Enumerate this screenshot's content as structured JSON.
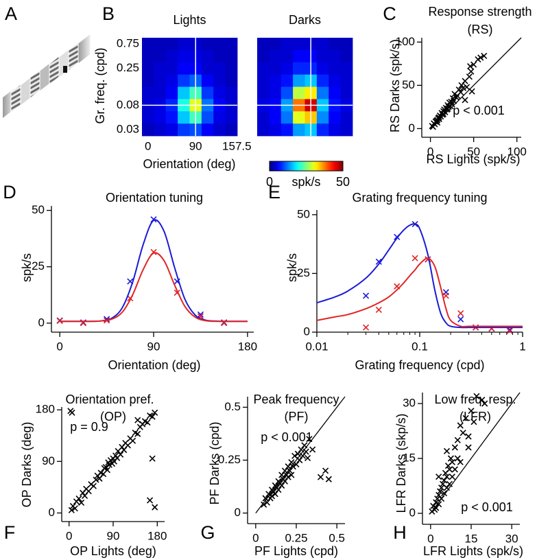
{
  "stimulus": {
    "panel": "A"
  },
  "chart_data": [
    {
      "type": "heatmap",
      "panel": "B",
      "x": [
        0,
        22.5,
        45,
        67.5,
        90,
        112.5,
        135,
        157.5
      ],
      "y": [
        0.75,
        0.5,
        0.25,
        0.18,
        0.12,
        0.08,
        0.045,
        0.03
      ],
      "xticks": [
        0,
        90,
        157.5
      ],
      "yticks": [
        0.75,
        0.25,
        0.08,
        0.03
      ],
      "xlabel": "Orientation (deg)",
      "ylabel": "Gr. freq. (cpd)",
      "clim": [
        0,
        50
      ],
      "colorbar_ticks": [
        0,
        50
      ],
      "colorbar_label": "spk/s",
      "crosshair": {
        "x": 90,
        "y": 0.08
      },
      "maps": [
        {
          "title": "Lights",
          "values": [
            [
              3,
              3,
              3,
              4,
              4,
              3,
              3,
              3
            ],
            [
              3,
              3,
              4,
              5,
              5,
              4,
              3,
              3
            ],
            [
              3,
              4,
              4,
              6,
              6,
              4,
              4,
              3
            ],
            [
              3,
              4,
              5,
              9,
              11,
              6,
              4,
              3
            ],
            [
              4,
              4,
              6,
              16,
              22,
              9,
              5,
              4
            ],
            [
              4,
              5,
              8,
              20,
              30,
              12,
              6,
              4
            ],
            [
              4,
              5,
              7,
              16,
              22,
              10,
              5,
              4
            ],
            [
              3,
              4,
              5,
              9,
              10,
              6,
              4,
              3
            ]
          ]
        },
        {
          "title": "Darks",
          "values": [
            [
              3,
              3,
              4,
              4,
              4,
              4,
              3,
              3
            ],
            [
              3,
              4,
              4,
              6,
              6,
              4,
              4,
              3
            ],
            [
              4,
              4,
              5,
              8,
              8,
              5,
              4,
              4
            ],
            [
              4,
              5,
              7,
              14,
              16,
              8,
              5,
              4
            ],
            [
              4,
              5,
              10,
              28,
              32,
              12,
              6,
              4
            ],
            [
              5,
              6,
              14,
              38,
              46,
              16,
              7,
              5
            ],
            [
              4,
              6,
              12,
              30,
              34,
              13,
              6,
              4
            ],
            [
              4,
              5,
              7,
              14,
              16,
              8,
              5,
              4
            ]
          ]
        }
      ]
    },
    {
      "type": "scatter",
      "panel": "C",
      "title": "Response strength",
      "subtitle": "(RS)",
      "xlabel": "RS Lights (spk/s)",
      "ylabel": "RS Darks (spk/s)",
      "annotation": "p < 0.001",
      "xlim": [
        -10,
        105
      ],
      "ylim": [
        -10,
        105
      ],
      "xticks": [
        0,
        50,
        100
      ],
      "yticks": [
        0,
        50,
        100
      ],
      "color": "#000000",
      "diagonal": true,
      "x": [
        2,
        3,
        4,
        5,
        6,
        7,
        8,
        8,
        9,
        10,
        10,
        11,
        12,
        13,
        14,
        15,
        15,
        16,
        17,
        18,
        19,
        20,
        20,
        21,
        22,
        23,
        24,
        25,
        26,
        27,
        28,
        30,
        31,
        33,
        35,
        36,
        38,
        40,
        42,
        45,
        47,
        46,
        50,
        55,
        62,
        58,
        48,
        40
      ],
      "values": [
        3,
        2,
        6,
        5,
        8,
        9,
        10,
        7,
        12,
        13,
        11,
        15,
        14,
        18,
        16,
        20,
        17,
        22,
        19,
        24,
        22,
        27,
        23,
        25,
        30,
        26,
        31,
        28,
        35,
        32,
        40,
        36,
        38,
        45,
        42,
        50,
        47,
        55,
        48,
        60,
        66,
        72,
        74,
        80,
        84,
        82,
        43,
        33
      ]
    },
    {
      "type": "line",
      "panel": "D",
      "title": "Orientation tuning",
      "xlabel": "Orientation (deg)",
      "ylabel": "spk/s",
      "xscale": "linear",
      "xlim": [
        -8,
        186
      ],
      "ylim": [
        -4,
        52
      ],
      "xticks": [
        0,
        90,
        180
      ],
      "yticks": [
        0,
        25,
        50
      ],
      "series": [
        {
          "color": "#1a1ad6",
          "style": "markers",
          "x": [
            0,
            22.5,
            45,
            67.5,
            90,
            112.5,
            135,
            157.5
          ],
          "values": [
            1.2,
            0.3,
            1.8,
            18.5,
            46,
            18.5,
            3.8,
            0.3
          ]
        },
        {
          "color": "#e02424",
          "style": "markers",
          "x": [
            0,
            22.5,
            45,
            67.5,
            90,
            112.5,
            135,
            157.5
          ],
          "values": [
            1,
            0,
            1.2,
            11,
            31.5,
            13.5,
            3,
            0
          ]
        },
        {
          "color": "#1a1ad6",
          "style": "line",
          "x": [
            0,
            10,
            20,
            30,
            40,
            50,
            60,
            70,
            80,
            90,
            100,
            110,
            120,
            130,
            140,
            150,
            160,
            170,
            180
          ],
          "values": [
            0.8,
            0.8,
            0.8,
            0.8,
            1.0,
            2.2,
            6.9,
            18.4,
            34.9,
            45.6,
            40.7,
            24.8,
            10.6,
            3.5,
            1.3,
            0.9,
            0.8,
            0.8,
            0.8
          ]
        },
        {
          "color": "#e02424",
          "style": "line",
          "x": [
            0,
            10,
            20,
            30,
            40,
            50,
            60,
            70,
            80,
            90,
            100,
            110,
            120,
            130,
            140,
            150,
            160,
            170,
            180
          ],
          "values": [
            0.8,
            0.8,
            0.8,
            0.8,
            1.0,
            1.8,
            4.9,
            12.7,
            23.8,
            31.1,
            27.7,
            17.0,
            7.4,
            2.6,
            1.1,
            0.8,
            0.8,
            0.8,
            0.8
          ]
        }
      ]
    },
    {
      "type": "line",
      "panel": "E",
      "title": "Grating frequency tuning",
      "xlabel": "Grating frequency (cpd)",
      "ylabel": "spk/s",
      "xscale": "log",
      "xlim": [
        0.01,
        1
      ],
      "ylim": [
        0,
        52
      ],
      "xticks": [
        0.01,
        0.1,
        1
      ],
      "yticks": [
        0,
        25,
        50
      ],
      "xminorticks": [
        0.02,
        0.03,
        0.04,
        0.05,
        0.06,
        0.07,
        0.08,
        0.09,
        0.2,
        0.3,
        0.4,
        0.5,
        0.6,
        0.7,
        0.8,
        0.9
      ],
      "series": [
        {
          "color": "#1a1ad6",
          "style": "markers",
          "x": [
            0.03,
            0.04,
            0.06,
            0.09,
            0.12,
            0.18,
            0.25,
            0.35,
            0.5,
            0.75
          ],
          "values": [
            15.5,
            30,
            40.5,
            46,
            31,
            17,
            5.5,
            2,
            1.5,
            1
          ]
        },
        {
          "color": "#e02424",
          "style": "markers",
          "x": [
            0.03,
            0.04,
            0.06,
            0.09,
            0.12,
            0.18,
            0.25,
            0.35,
            0.5,
            0.75
          ],
          "values": [
            2,
            9.5,
            19.5,
            31.5,
            31,
            15.5,
            8,
            2,
            1.5,
            0.5
          ]
        },
        {
          "color": "#1a1ad6",
          "style": "line",
          "x": [
            0.01,
            0.015,
            0.02,
            0.03,
            0.04,
            0.05,
            0.06,
            0.07,
            0.08,
            0.09,
            0.1,
            0.12,
            0.14,
            0.16,
            0.18,
            0.2,
            0.25,
            0.3,
            0.4,
            0.5,
            0.7,
            1
          ],
          "values": [
            12.5,
            15,
            17.5,
            23,
            29,
            35,
            40,
            43.5,
            45.5,
            46,
            44,
            33,
            18,
            8,
            4,
            2.5,
            2,
            2,
            2,
            2,
            2,
            2
          ]
        },
        {
          "color": "#e02424",
          "style": "line",
          "x": [
            0.01,
            0.015,
            0.02,
            0.03,
            0.04,
            0.05,
            0.06,
            0.07,
            0.08,
            0.09,
            0.1,
            0.12,
            0.14,
            0.16,
            0.18,
            0.2,
            0.25,
            0.3,
            0.4,
            0.5,
            0.7,
            1
          ],
          "values": [
            5,
            6.5,
            7.5,
            10,
            12.5,
            15,
            18,
            21,
            24,
            26.5,
            29,
            31.5,
            28,
            19,
            10,
            5,
            2.5,
            2.5,
            2.5,
            2.5,
            2.5,
            2.5
          ]
        }
      ]
    },
    {
      "type": "scatter",
      "panel": "F",
      "title": "Orientation pref.",
      "subtitle": "(OP)",
      "xlabel": "OP Lights (deg)",
      "ylabel": "OP Darks (deg)",
      "annotation": "p = 0.9",
      "xlim": [
        -15,
        195
      ],
      "ylim": [
        -15,
        185
      ],
      "xticks": [
        0,
        90,
        180
      ],
      "yticks": [
        0,
        90,
        180
      ],
      "color": "#000000",
      "diagonal": false,
      "x": [
        5,
        8,
        12,
        15,
        20,
        25,
        28,
        32,
        35,
        40,
        45,
        50,
        55,
        58,
        62,
        65,
        70,
        72,
        75,
        78,
        80,
        82,
        85,
        88,
        90,
        92,
        95,
        98,
        100,
        105,
        108,
        112,
        115,
        120,
        125,
        130,
        135,
        140,
        145,
        150,
        155,
        160,
        165,
        170,
        175,
        3,
        6,
        165,
        175,
        170,
        140
      ],
      "values": [
        5,
        12,
        8,
        20,
        25,
        18,
        35,
        30,
        42,
        38,
        50,
        47,
        58,
        65,
        60,
        70,
        68,
        78,
        80,
        75,
        88,
        84,
        92,
        86,
        95,
        90,
        100,
        96,
        108,
        102,
        115,
        110,
        122,
        118,
        130,
        126,
        140,
        138,
        150,
        155,
        160,
        158,
        170,
        168,
        175,
        178,
        175,
        22,
        10,
        95,
        162
      ]
    },
    {
      "type": "scatter",
      "panel": "G",
      "title": "Peak frequency",
      "subtitle": "(PF)",
      "xlabel": "PF Lights (cpd)",
      "ylabel": "PF Darks (cpd)",
      "annotation": "p < 0.001",
      "xlim": [
        -0.05,
        0.55
      ],
      "ylim": [
        -0.05,
        0.55
      ],
      "xticks": [
        0,
        0.25,
        0.5
      ],
      "yticks": [
        0,
        0.25,
        0.5
      ],
      "color": "#000000",
      "diagonal": true,
      "x": [
        0.05,
        0.06,
        0.07,
        0.08,
        0.09,
        0.1,
        0.1,
        0.11,
        0.12,
        0.12,
        0.13,
        0.14,
        0.14,
        0.15,
        0.16,
        0.16,
        0.17,
        0.18,
        0.18,
        0.19,
        0.2,
        0.2,
        0.21,
        0.22,
        0.22,
        0.23,
        0.24,
        0.25,
        0.26,
        0.27,
        0.28,
        0.29,
        0.3,
        0.31,
        0.33,
        0.35,
        0.4,
        0.45,
        0.43,
        0.32
      ],
      "values": [
        0.04,
        0.07,
        0.05,
        0.09,
        0.07,
        0.11,
        0.08,
        0.1,
        0.13,
        0.09,
        0.12,
        0.15,
        0.11,
        0.14,
        0.18,
        0.13,
        0.16,
        0.2,
        0.15,
        0.18,
        0.22,
        0.17,
        0.2,
        0.24,
        0.18,
        0.22,
        0.27,
        0.23,
        0.28,
        0.25,
        0.3,
        0.27,
        0.32,
        0.29,
        0.35,
        0.3,
        0.17,
        0.16,
        0.2,
        0.26
      ]
    },
    {
      "type": "scatter",
      "panel": "H",
      "title": "Low freq. resp.",
      "subtitle": "(LFR)",
      "xlabel": "LFR Lights (spk/s)",
      "ylabel": "LFR Darks (skp/s)",
      "annotation": "p < 0.001",
      "xlim": [
        -3,
        33
      ],
      "ylim": [
        -3,
        33
      ],
      "xticks": [
        0,
        15,
        30
      ],
      "yticks": [
        0,
        15,
        30
      ],
      "color": "#000000",
      "diagonal": true,
      "x": [
        0.5,
        1,
        1.5,
        2,
        2,
        2.5,
        3,
        3,
        3.5,
        4,
        4,
        4.5,
        5,
        5,
        5.5,
        6,
        6,
        6.5,
        7,
        7,
        7.5,
        8,
        8,
        9,
        9,
        10,
        10,
        11,
        11,
        12,
        13,
        14,
        15,
        16,
        17,
        19,
        20,
        14,
        3,
        6
      ],
      "values": [
        0.5,
        2,
        1,
        3,
        1.5,
        4,
        5,
        2.5,
        6,
        7,
        4,
        8,
        9,
        5.5,
        11,
        10,
        7,
        13,
        12,
        8,
        15,
        14,
        10,
        18,
        12,
        20,
        15,
        24,
        14,
        22,
        26,
        21,
        28,
        25,
        32,
        31,
        30,
        18,
        10,
        17
      ]
    }
  ]
}
